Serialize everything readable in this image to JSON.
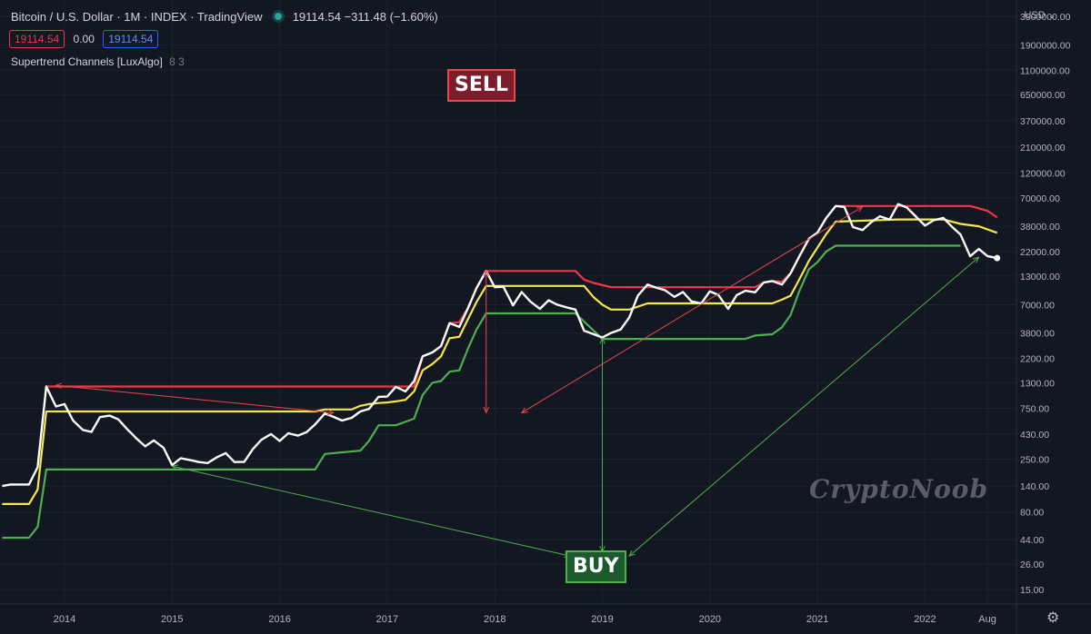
{
  "header": {
    "title": "Bitcoin / U.S. Dollar · 1M · INDEX · TradingView",
    "price": "19114.54",
    "change": "−311.48 (−1.60%)",
    "values": [
      "19114.54",
      "0.00",
      "19114.54"
    ],
    "indicator": "Supertrend Channels [LuxAlgo]",
    "indicator_params": "8 3",
    "currency": "USD"
  },
  "annotations": {
    "sell": "SELL",
    "buy": "BUY",
    "watermark": "CryptoNoob"
  },
  "colors": {
    "background": "#131722",
    "price": "#ffffff",
    "upper": "#f23645",
    "middle": "#f5e84a",
    "lower": "#4caf50",
    "sell_arrow": "#e5484d",
    "buy_arrow": "#4caf50"
  },
  "chart_data": {
    "type": "line",
    "scale": "log",
    "grid": true,
    "x_range": [
      2013.4,
      2022.85
    ],
    "ylim": [
      11,
      5000000
    ],
    "x_ticks": [
      {
        "x": 2014,
        "label": "2014"
      },
      {
        "x": 2015,
        "label": "2015"
      },
      {
        "x": 2016,
        "label": "2016"
      },
      {
        "x": 2017,
        "label": "2017"
      },
      {
        "x": 2018,
        "label": "2018"
      },
      {
        "x": 2019,
        "label": "2019"
      },
      {
        "x": 2020,
        "label": "2020"
      },
      {
        "x": 2021,
        "label": "2021"
      },
      {
        "x": 2022,
        "label": "2022"
      },
      {
        "x": 2022.58,
        "label": "Aug"
      }
    ],
    "y_ticks": [
      {
        "v": 3500000,
        "label": "3500000.00"
      },
      {
        "v": 1900000,
        "label": "1900000.00"
      },
      {
        "v": 1100000,
        "label": "1100000.00"
      },
      {
        "v": 650000,
        "label": "650000.00"
      },
      {
        "v": 370000,
        "label": "370000.00"
      },
      {
        "v": 210000,
        "label": "210000.00"
      },
      {
        "v": 120000,
        "label": "120000.00"
      },
      {
        "v": 70000,
        "label": "70000.00"
      },
      {
        "v": 38000,
        "label": "38000.00"
      },
      {
        "v": 22000,
        "label": "22000.00"
      },
      {
        "v": 13000,
        "label": "13000.00"
      },
      {
        "v": 7000,
        "label": "7000.00"
      },
      {
        "v": 3800,
        "label": "3800.00"
      },
      {
        "v": 2200,
        "label": "2200.00"
      },
      {
        "v": 1300,
        "label": "1300.00"
      },
      {
        "v": 750,
        "label": "750.00"
      },
      {
        "v": 430,
        "label": "430.00"
      },
      {
        "v": 250,
        "label": "250.00"
      },
      {
        "v": 140,
        "label": "140.00"
      },
      {
        "v": 80,
        "label": "80.00"
      },
      {
        "v": 44,
        "label": "44.00"
      },
      {
        "v": 26,
        "label": "26.00"
      },
      {
        "v": 15,
        "label": "15.00"
      }
    ],
    "series": [
      {
        "key": "price",
        "color": "#ffffff",
        "points": [
          [
            2013.42,
            140
          ],
          [
            2013.5,
            145
          ],
          [
            2013.67,
            145
          ],
          [
            2013.75,
            210
          ],
          [
            2013.83,
            1200
          ],
          [
            2013.92,
            780
          ],
          [
            2014.0,
            820
          ],
          [
            2014.08,
            575
          ],
          [
            2014.17,
            470
          ],
          [
            2014.25,
            450
          ],
          [
            2014.33,
            620
          ],
          [
            2014.42,
            640
          ],
          [
            2014.5,
            590
          ],
          [
            2014.58,
            480
          ],
          [
            2014.67,
            390
          ],
          [
            2014.75,
            330
          ],
          [
            2014.83,
            375
          ],
          [
            2014.92,
            320
          ],
          [
            2015.0,
            220
          ],
          [
            2015.08,
            255
          ],
          [
            2015.17,
            245
          ],
          [
            2015.25,
            235
          ],
          [
            2015.33,
            230
          ],
          [
            2015.42,
            262
          ],
          [
            2015.5,
            285
          ],
          [
            2015.58,
            235
          ],
          [
            2015.67,
            236
          ],
          [
            2015.75,
            310
          ],
          [
            2015.83,
            380
          ],
          [
            2015.92,
            430
          ],
          [
            2016.0,
            370
          ],
          [
            2016.08,
            437
          ],
          [
            2016.17,
            416
          ],
          [
            2016.25,
            448
          ],
          [
            2016.33,
            530
          ],
          [
            2016.42,
            670
          ],
          [
            2016.5,
            624
          ],
          [
            2016.58,
            575
          ],
          [
            2016.67,
            610
          ],
          [
            2016.75,
            700
          ],
          [
            2016.83,
            740
          ],
          [
            2016.92,
            960
          ],
          [
            2017.0,
            965
          ],
          [
            2017.08,
            1190
          ],
          [
            2017.17,
            1080
          ],
          [
            2017.25,
            1350
          ],
          [
            2017.33,
            2300
          ],
          [
            2017.42,
            2500
          ],
          [
            2017.5,
            2870
          ],
          [
            2017.58,
            4700
          ],
          [
            2017.67,
            4340
          ],
          [
            2017.75,
            6450
          ],
          [
            2017.83,
            10000
          ],
          [
            2017.92,
            14500
          ],
          [
            2018.0,
            10200
          ],
          [
            2018.08,
            10300
          ],
          [
            2018.17,
            6900
          ],
          [
            2018.25,
            9200
          ],
          [
            2018.33,
            7500
          ],
          [
            2018.42,
            6400
          ],
          [
            2018.5,
            7700
          ],
          [
            2018.58,
            7000
          ],
          [
            2018.67,
            6600
          ],
          [
            2018.75,
            6300
          ],
          [
            2018.83,
            4000
          ],
          [
            2018.92,
            3700
          ],
          [
            2019.0,
            3450
          ],
          [
            2019.08,
            3800
          ],
          [
            2019.17,
            4100
          ],
          [
            2019.25,
            5300
          ],
          [
            2019.33,
            8500
          ],
          [
            2019.42,
            10800
          ],
          [
            2019.5,
            10100
          ],
          [
            2019.58,
            9600
          ],
          [
            2019.67,
            8300
          ],
          [
            2019.75,
            9200
          ],
          [
            2019.83,
            7500
          ],
          [
            2019.92,
            7200
          ],
          [
            2020.0,
            9350
          ],
          [
            2020.08,
            8600
          ],
          [
            2020.17,
            6400
          ],
          [
            2020.25,
            8600
          ],
          [
            2020.33,
            9450
          ],
          [
            2020.42,
            9150
          ],
          [
            2020.5,
            11300
          ],
          [
            2020.58,
            11650
          ],
          [
            2020.67,
            10800
          ],
          [
            2020.75,
            13800
          ],
          [
            2020.83,
            19700
          ],
          [
            2020.92,
            29000
          ],
          [
            2021.0,
            33100
          ],
          [
            2021.08,
            45200
          ],
          [
            2021.17,
            58800
          ],
          [
            2021.25,
            57700
          ],
          [
            2021.33,
            37300
          ],
          [
            2021.42,
            35000
          ],
          [
            2021.5,
            41500
          ],
          [
            2021.58,
            47100
          ],
          [
            2021.67,
            43800
          ],
          [
            2021.75,
            61300
          ],
          [
            2021.83,
            57000
          ],
          [
            2021.92,
            46300
          ],
          [
            2022.0,
            38500
          ],
          [
            2022.08,
            43200
          ],
          [
            2022.17,
            45500
          ],
          [
            2022.25,
            37600
          ],
          [
            2022.33,
            31800
          ],
          [
            2022.42,
            19900
          ],
          [
            2022.5,
            23300
          ],
          [
            2022.58,
            20000
          ],
          [
            2022.67,
            19114
          ]
        ]
      },
      {
        "key": "upper",
        "color": "#f23645",
        "points": [
          [
            2013.83,
            1200
          ],
          [
            2017.25,
            1200
          ],
          [
            2017.33,
            2300
          ],
          [
            2017.42,
            2500
          ],
          [
            2017.5,
            2870
          ],
          [
            2017.58,
            4700
          ],
          [
            2017.67,
            4800
          ],
          [
            2017.75,
            6500
          ],
          [
            2017.83,
            10000
          ],
          [
            2017.92,
            14500
          ],
          [
            2018.75,
            14500
          ],
          [
            2018.83,
            12000
          ],
          [
            2018.92,
            11200
          ],
          [
            2019.08,
            10200
          ],
          [
            2019.25,
            10200
          ],
          [
            2020.42,
            10200
          ],
          [
            2020.5,
            11300
          ],
          [
            2020.58,
            11650
          ],
          [
            2020.67,
            11500
          ],
          [
            2020.75,
            13800
          ],
          [
            2020.83,
            19700
          ],
          [
            2020.92,
            29000
          ],
          [
            2021.0,
            33100
          ],
          [
            2021.08,
            45200
          ],
          [
            2021.17,
            58800
          ],
          [
            2022.42,
            58800
          ],
          [
            2022.58,
            53000
          ],
          [
            2022.67,
            46000
          ]
        ]
      },
      {
        "key": "middle",
        "color": "#f5e84a",
        "points": [
          [
            2013.42,
            95
          ],
          [
            2013.67,
            95
          ],
          [
            2013.75,
            130
          ],
          [
            2013.83,
            700
          ],
          [
            2016.33,
            700
          ],
          [
            2016.42,
            730
          ],
          [
            2016.67,
            730
          ],
          [
            2016.75,
            790
          ],
          [
            2016.83,
            820
          ],
          [
            2016.92,
            840
          ],
          [
            2017.0,
            850
          ],
          [
            2017.08,
            870
          ],
          [
            2017.17,
            900
          ],
          [
            2017.25,
            1080
          ],
          [
            2017.33,
            1700
          ],
          [
            2017.42,
            1950
          ],
          [
            2017.5,
            2300
          ],
          [
            2017.58,
            3400
          ],
          [
            2017.67,
            3500
          ],
          [
            2017.75,
            5100
          ],
          [
            2017.83,
            7400
          ],
          [
            2017.92,
            10500
          ],
          [
            2018.83,
            10500
          ],
          [
            2018.92,
            8200
          ],
          [
            2019.0,
            7000
          ],
          [
            2019.08,
            6300
          ],
          [
            2019.25,
            6300
          ],
          [
            2019.42,
            7200
          ],
          [
            2020.58,
            7200
          ],
          [
            2020.67,
            7800
          ],
          [
            2020.75,
            8500
          ],
          [
            2020.83,
            12000
          ],
          [
            2020.92,
            18000
          ],
          [
            2021.0,
            24000
          ],
          [
            2021.08,
            32000
          ],
          [
            2021.17,
            42000
          ],
          [
            2021.75,
            44000
          ],
          [
            2022.17,
            44000
          ],
          [
            2022.33,
            40000
          ],
          [
            2022.5,
            38000
          ],
          [
            2022.67,
            33000
          ]
        ]
      },
      {
        "key": "lower",
        "color": "#4caf50",
        "points": [
          [
            2013.42,
            46
          ],
          [
            2013.67,
            46
          ],
          [
            2013.75,
            58
          ],
          [
            2013.83,
            200
          ],
          [
            2016.33,
            200
          ],
          [
            2016.42,
            280
          ],
          [
            2016.58,
            290
          ],
          [
            2016.75,
            300
          ],
          [
            2016.83,
            370
          ],
          [
            2016.92,
            520
          ],
          [
            2017.08,
            520
          ],
          [
            2017.17,
            560
          ],
          [
            2017.25,
            600
          ],
          [
            2017.33,
            1000
          ],
          [
            2017.42,
            1300
          ],
          [
            2017.5,
            1350
          ],
          [
            2017.58,
            1650
          ],
          [
            2017.67,
            1700
          ],
          [
            2017.75,
            2700
          ],
          [
            2017.83,
            4100
          ],
          [
            2017.92,
            5800
          ],
          [
            2018.75,
            5800
          ],
          [
            2019.0,
            3350
          ],
          [
            2020.33,
            3350
          ],
          [
            2020.42,
            3600
          ],
          [
            2020.58,
            3700
          ],
          [
            2020.67,
            4300
          ],
          [
            2020.75,
            5600
          ],
          [
            2020.83,
            9300
          ],
          [
            2020.92,
            15000
          ],
          [
            2021.0,
            17500
          ],
          [
            2021.08,
            22000
          ],
          [
            2021.17,
            25000
          ],
          [
            2022.33,
            25000
          ]
        ]
      }
    ],
    "sell_arrows": [
      {
        "from": [
          2013.92,
          1230
        ],
        "to": [
          2016.5,
          680
        ]
      },
      {
        "from": [
          2017.92,
          14700
        ],
        "to": [
          2017.92,
          680
        ]
      },
      {
        "from": [
          2021.42,
          58000
        ],
        "to": [
          2018.25,
          680
        ]
      }
    ],
    "buy_arrows": [
      {
        "from": [
          2015.0,
          215
        ],
        "to": [
          2018.7,
          31
        ]
      },
      {
        "from": [
          2019.0,
          3400
        ],
        "to": [
          2019.0,
          34
        ]
      },
      {
        "from": [
          2022.5,
          19500
        ],
        "to": [
          2019.25,
          31
        ]
      }
    ]
  }
}
